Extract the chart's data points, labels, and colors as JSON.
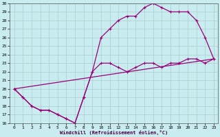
{
  "xlabel": "Windchill (Refroidissement éolien,°C)",
  "background_color": "#c8ecf0",
  "line_color": "#990077",
  "grid_color": "#aacccc",
  "xlim": [
    -0.5,
    23.5
  ],
  "ylim": [
    16,
    30
  ],
  "xticks": [
    0,
    1,
    2,
    3,
    4,
    5,
    6,
    7,
    8,
    9,
    10,
    11,
    12,
    13,
    14,
    15,
    16,
    17,
    18,
    19,
    20,
    21,
    22,
    23
  ],
  "yticks": [
    16,
    17,
    18,
    19,
    20,
    21,
    22,
    23,
    24,
    25,
    26,
    27,
    28,
    29,
    30
  ],
  "line1_x": [
    0,
    1,
    2,
    3,
    4,
    5,
    6,
    7,
    8,
    9,
    10,
    11,
    12,
    13,
    14,
    15,
    16,
    17,
    18,
    19,
    20,
    21,
    22,
    23
  ],
  "line1_y": [
    20,
    19,
    18,
    17.5,
    17.5,
    17,
    16.5,
    16,
    19,
    22,
    26,
    27,
    28,
    28.5,
    28.5,
    29.5,
    30,
    29.5,
    29,
    29,
    29,
    28,
    26,
    23.5
  ],
  "line2_x": [
    0,
    1,
    2,
    3,
    4,
    5,
    6,
    7,
    8,
    9,
    10,
    11,
    12,
    13,
    14,
    15,
    16,
    17,
    18,
    19,
    20,
    21,
    22,
    23
  ],
  "line2_y": [
    20,
    19,
    18,
    17.5,
    17.5,
    17,
    16.5,
    16,
    19,
    22,
    23,
    23,
    22.5,
    22,
    22.5,
    23,
    23,
    22.5,
    23,
    23,
    23.5,
    23.5,
    23,
    23.5
  ],
  "line3_x": [
    0,
    23
  ],
  "line3_y": [
    20,
    23.5
  ]
}
